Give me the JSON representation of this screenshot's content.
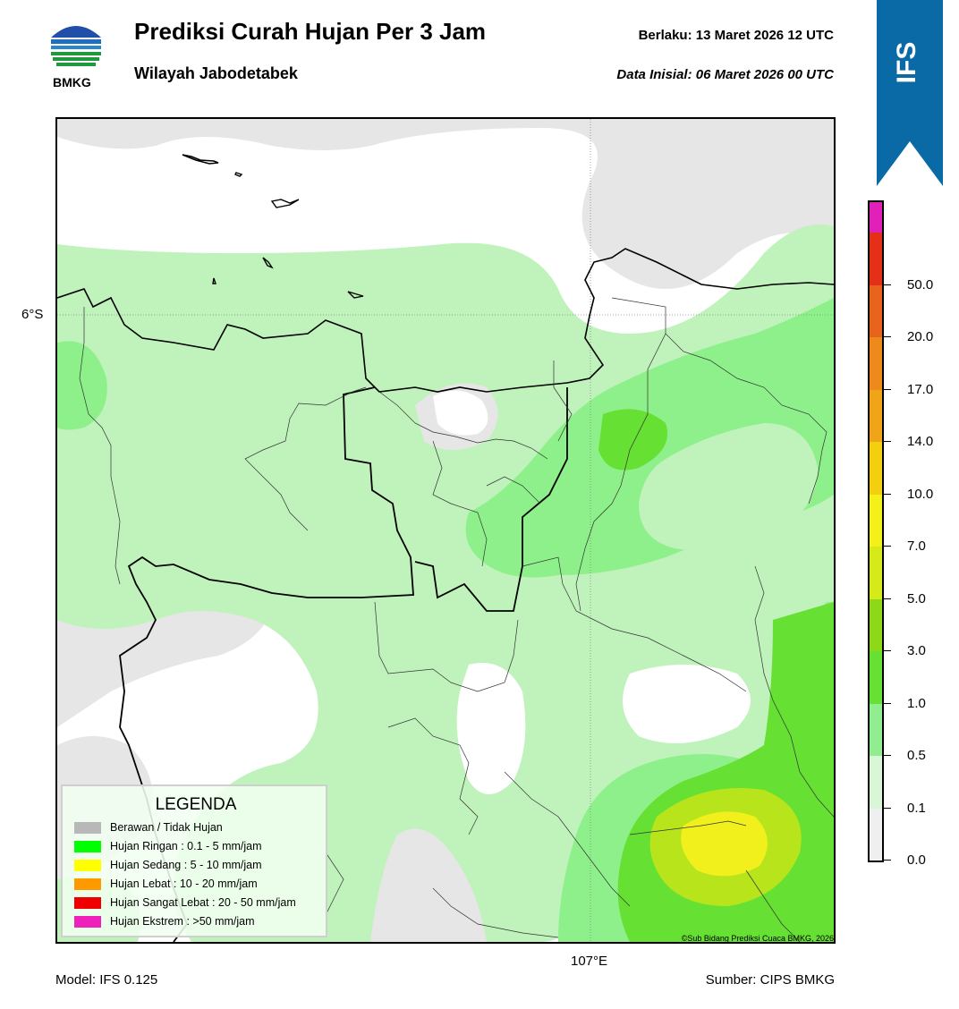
{
  "header": {
    "title": "Prediksi Curah Hujan Per 3 Jam",
    "subtitle": "Wilayah Jabodetabek",
    "valid_time": "Berlaku:  13 Maret 2026 12 UTC",
    "init_time": "Data Inisial:  06 Maret 2026 00 UTC",
    "logo_text": "BMKG"
  },
  "ribbon": {
    "label": "IFS",
    "color": "#0a6aa6"
  },
  "map": {
    "lat_label": "6°S",
    "lon_label": "107°E",
    "credit": "©Sub Bidang Prediksi Cuaca BMKG, 2026"
  },
  "legend": {
    "title": "LEGENDA",
    "items": [
      {
        "label": "Berawan / Tidak Hujan",
        "color": "#b8b8b8"
      },
      {
        "label": "Hujan Ringan : 0.1 - 5 mm/jam",
        "color": "#00ff00"
      },
      {
        "label": "Hujan Sedang : 5 - 10 mm/jam",
        "color": "#ffff00"
      },
      {
        "label": "Hujan Lebat : 10 - 20 mm/jam",
        "color": "#ff9900"
      },
      {
        "label": "Hujan Sangat Lebat : 20 - 50 mm/jam",
        "color": "#ee0000"
      },
      {
        "label": "Hujan Ekstrem : >50 mm/jam",
        "color": "#ee22bb"
      }
    ]
  },
  "colorbar": {
    "labels": [
      "0.0",
      "0.1",
      "0.5",
      "1.0",
      "3.0",
      "5.0",
      "7.0",
      "10.0",
      "14.0",
      "17.0",
      "20.0",
      "50.0"
    ],
    "colors": [
      "#efefef",
      "#d9f6d6",
      "#90ee90",
      "#66e032",
      "#8ed81a",
      "#d6ea1a",
      "#f4f01a",
      "#f3cf10",
      "#f0a418",
      "#ee8a1c",
      "#e8641c",
      "#e43016",
      "#e020b8"
    ]
  },
  "footer": {
    "model": "Model: IFS 0.125",
    "source": "Sumber: CIPS BMKG"
  }
}
